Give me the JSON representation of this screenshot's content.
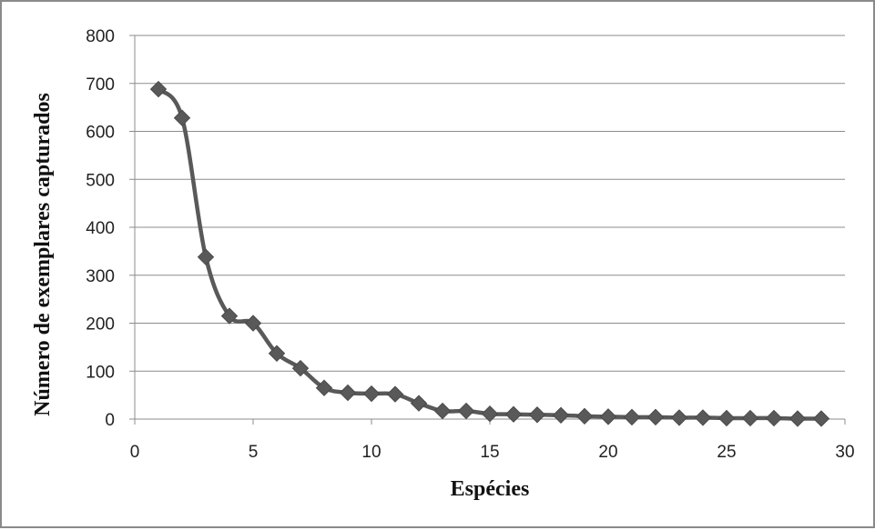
{
  "chart_data": {
    "type": "line",
    "xlabel": "Espécies",
    "ylabel": "Número de exemplares capturados",
    "xlim": [
      0,
      30
    ],
    "ylim": [
      0,
      800
    ],
    "xticks": [
      0,
      5,
      10,
      15,
      20,
      25,
      30
    ],
    "yticks": [
      0,
      100,
      200,
      300,
      400,
      500,
      600,
      700,
      800
    ],
    "xtick_labels": [
      "0",
      "5",
      "10",
      "15",
      "20",
      "25",
      "30"
    ],
    "ytick_labels": [
      "0",
      "100",
      "200",
      "300",
      "400",
      "500",
      "600",
      "700",
      "800"
    ],
    "grid": "horizontal",
    "legend": "none",
    "series": [
      {
        "color": "#595959",
        "marker": "diamond",
        "smooth": true,
        "x": [
          1,
          2,
          3,
          4,
          5,
          6,
          7,
          8,
          9,
          10,
          11,
          12,
          13,
          14,
          15,
          16,
          17,
          18,
          19,
          20,
          21,
          22,
          23,
          24,
          25,
          26,
          27,
          28,
          29
        ],
        "y": [
          688,
          628,
          338,
          215,
          200,
          137,
          106,
          65,
          55,
          53,
          52,
          33,
          17,
          17,
          11,
          10,
          9,
          8,
          6,
          5,
          4,
          4,
          3,
          3,
          2,
          2,
          2,
          1,
          1
        ]
      }
    ]
  }
}
